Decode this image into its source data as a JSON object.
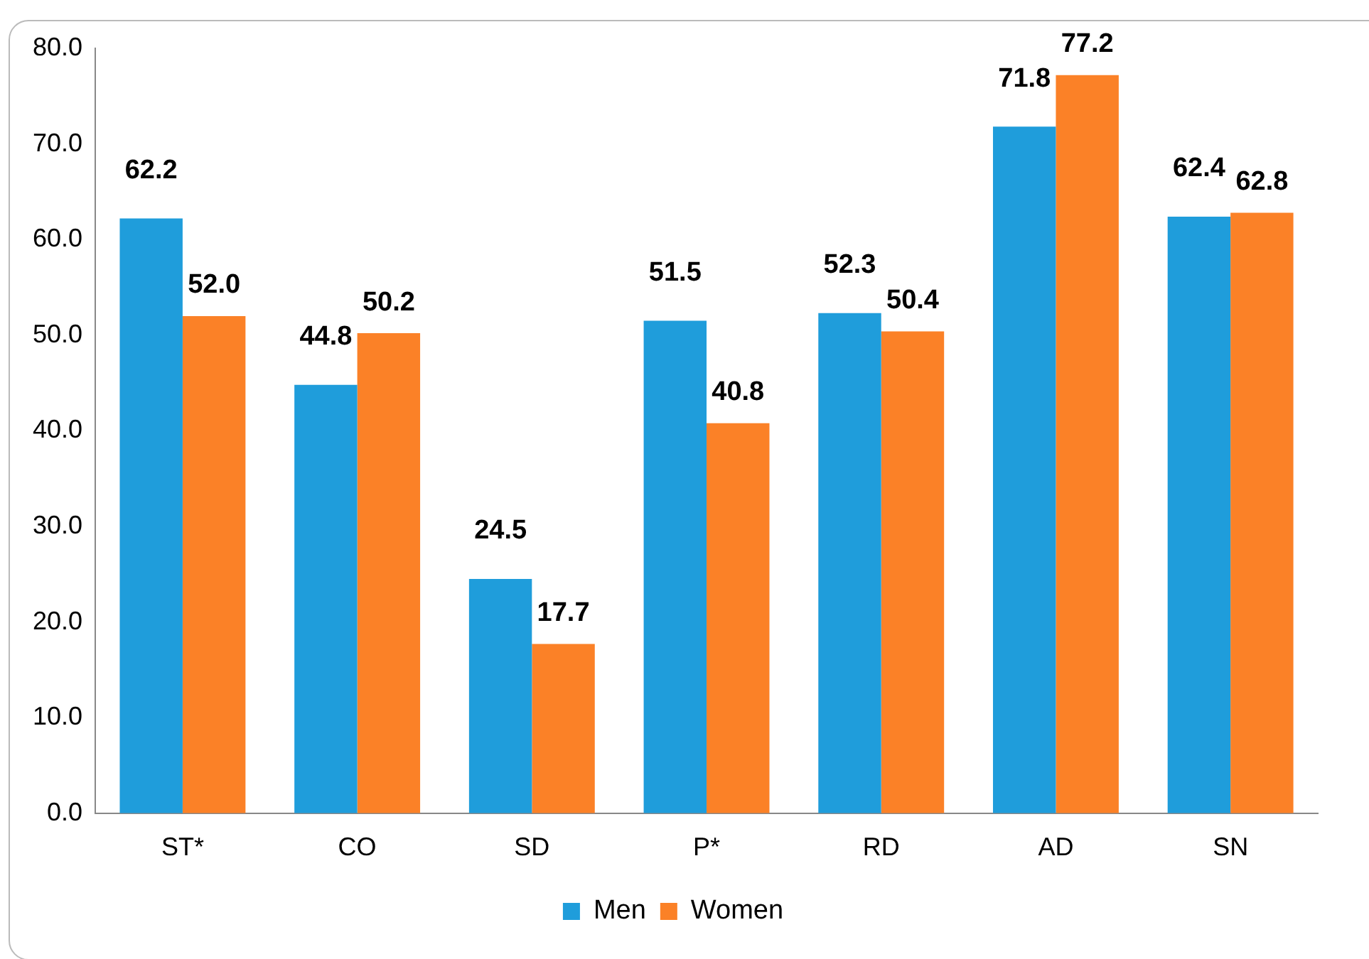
{
  "chart_data": {
    "type": "bar",
    "categories": [
      "ST*",
      "CO",
      "SD",
      "P*",
      "RD",
      "AD",
      "SN"
    ],
    "series": [
      {
        "name": "Men",
        "color": "#1f9ddb",
        "values": [
          62.2,
          44.8,
          24.5,
          51.5,
          52.3,
          71.8,
          62.4
        ],
        "value_labels": [
          "62.2",
          "44.8",
          "24.5",
          "51.5",
          "52.3",
          "71.8",
          "62.4"
        ]
      },
      {
        "name": "Women",
        "color": "#fb8127",
        "values": [
          52.0,
          50.2,
          17.7,
          40.8,
          50.4,
          77.2,
          62.8
        ],
        "value_labels": [
          "52.0",
          "50.2",
          "17.7",
          "40.8",
          "50.4",
          "77.2",
          "62.8"
        ]
      }
    ],
    "ylim": [
      0,
      80
    ],
    "yticks": [
      {
        "value": 0,
        "label": "0.0"
      },
      {
        "value": 10,
        "label": "10.0"
      },
      {
        "value": 20,
        "label": "20.0"
      },
      {
        "value": 30,
        "label": "30.0"
      },
      {
        "value": 40,
        "label": "40.0"
      },
      {
        "value": 50,
        "label": "50.0"
      },
      {
        "value": 60,
        "label": "60.0"
      },
      {
        "value": 70,
        "label": "70.0"
      },
      {
        "value": 80,
        "label": "80.0"
      }
    ],
    "grid": false,
    "legend": "bottom"
  }
}
